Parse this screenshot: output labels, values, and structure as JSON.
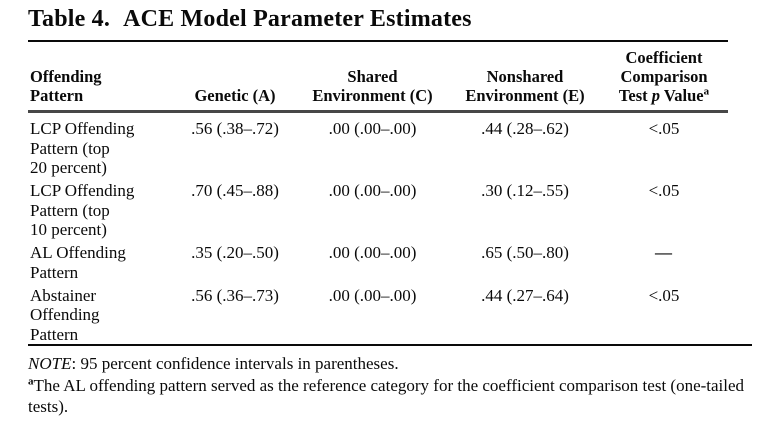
{
  "title": {
    "label": "Table 4.",
    "text": "ACE Model Parameter Estimates"
  },
  "table": {
    "headers": {
      "col1": [
        "Offending",
        "Pattern"
      ],
      "col2": [
        "Genetic (A)"
      ],
      "col3": [
        "Shared",
        "Environment (C)"
      ],
      "col4": [
        "Nonshared",
        "Environment (E)"
      ],
      "col5_top": [
        "Coefficient",
        "Comparison"
      ],
      "col5_test": "Test ",
      "col5_p": "p",
      "col5_value": " Value",
      "col5_sup": "a"
    },
    "rows": [
      {
        "pattern": [
          "LCP Offending",
          "Pattern (top",
          "20 percent)"
        ],
        "genetic": ".56 (.38–.72)",
        "shared": ".00 (.00–.00)",
        "nonshared": ".44 (.28–.62)",
        "p_value": "<.05"
      },
      {
        "pattern": [
          "LCP Offending",
          "Pattern (top",
          "10 percent)"
        ],
        "genetic": ".70 (.45–.88)",
        "shared": ".00 (.00–.00)",
        "nonshared": ".30 (.12–.55)",
        "p_value": "<.05"
      },
      {
        "pattern": [
          "AL Offending",
          "Pattern"
        ],
        "genetic": ".35 (.20–.50)",
        "shared": ".00 (.00–.00)",
        "nonshared": ".65 (.50–.80)",
        "p_value": "—"
      },
      {
        "pattern": [
          "Abstainer",
          "Offending",
          "Pattern"
        ],
        "genetic": ".56 (.36–.73)",
        "shared": ".00 (.00–.00)",
        "nonshared": ".44 (.27–.64)",
        "p_value": "<.05"
      }
    ]
  },
  "notes": {
    "note_label": "NOTE",
    "note_text": ": 95 percent confidence intervals in parentheses.",
    "footnote_marker": "a",
    "footnote_text": "The AL offending pattern served as the reference category for the coefficient comparison test (one-tailed tests)."
  }
}
